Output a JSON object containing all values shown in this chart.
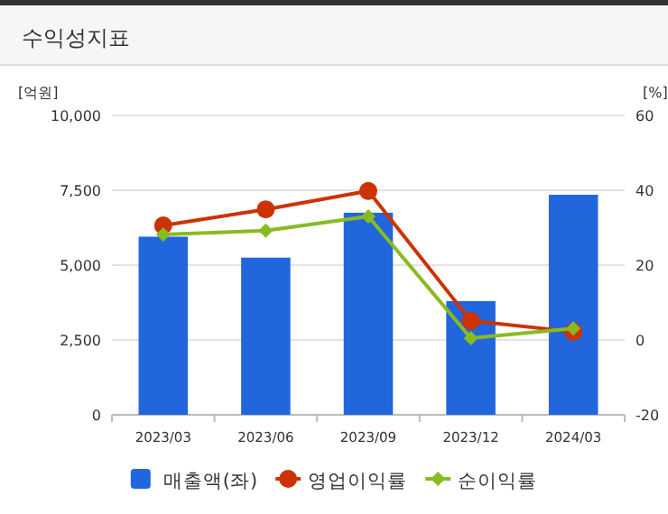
{
  "chart_data": {
    "type": "bar",
    "title": "수익성지표",
    "ylabel": "[억원]",
    "y2label": "[%]",
    "categories": [
      "2023/03",
      "2023/06",
      "2023/09",
      "2023/12",
      "2024/03"
    ],
    "series": [
      {
        "name": "매출액(좌)",
        "color": "#2266dd",
        "values": [
          5950,
          5250,
          6750,
          3800,
          7350
        ]
      },
      {
        "name": "영업이익률",
        "type": "line",
        "axis": "y2",
        "marker": "circle",
        "color": "#cc3300",
        "values": [
          30.6,
          34.9,
          39.8,
          5.1,
          2.2
        ]
      },
      {
        "name": "순이익률",
        "type": "line",
        "axis": "y2",
        "marker": "diamond",
        "color": "#88bb22",
        "values": [
          28.2,
          29.2,
          33.0,
          0.5,
          3.1
        ]
      }
    ],
    "ylim": [
      0,
      10000
    ],
    "yticks": [
      {
        "value": 0,
        "label": "0"
      },
      {
        "value": 2500,
        "label": "2,500"
      },
      {
        "value": 5000,
        "label": "5,000"
      },
      {
        "value": 7500,
        "label": "7,500"
      },
      {
        "value": 10000,
        "label": "10,000"
      }
    ],
    "y2lim": [
      -20,
      60
    ],
    "y2ticks": [
      -20,
      0,
      20,
      40,
      60
    ],
    "grid": "y",
    "legend": "bottom"
  }
}
